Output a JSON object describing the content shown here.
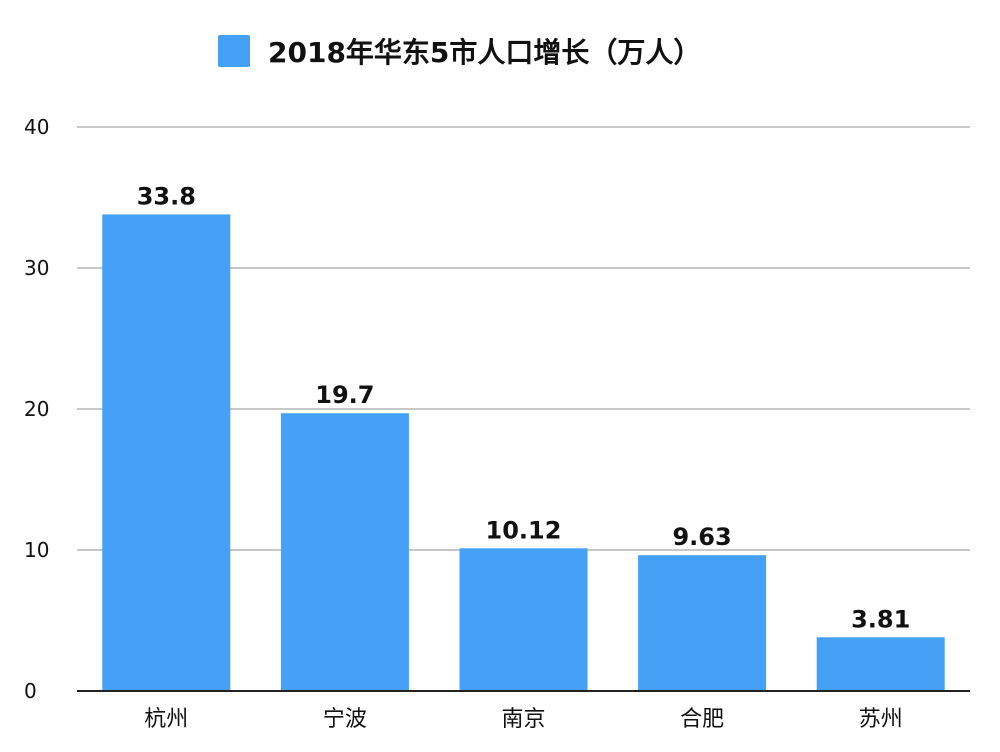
{
  "chart_data": {
    "type": "bar",
    "title": "",
    "xlabel": "",
    "ylabel": "",
    "categories": [
      "杭州",
      "宁波",
      "南京",
      "合肥",
      "苏州"
    ],
    "series": [
      {
        "name": "2018年华东5市人口增长（万人）",
        "values": [
          33.8,
          19.7,
          10.12,
          9.63,
          3.81
        ],
        "value_labels": [
          "33.8",
          "19.7",
          "10.12",
          "9.63",
          "3.81"
        ]
      }
    ],
    "ylim": [
      0,
      40
    ],
    "yticks": [
      0,
      10,
      20,
      30,
      40
    ],
    "grid": true,
    "legend": "top-center",
    "colors": {
      "bar": "#44a1f5",
      "grid": "#c8c8c8",
      "axis": "#222222"
    }
  }
}
